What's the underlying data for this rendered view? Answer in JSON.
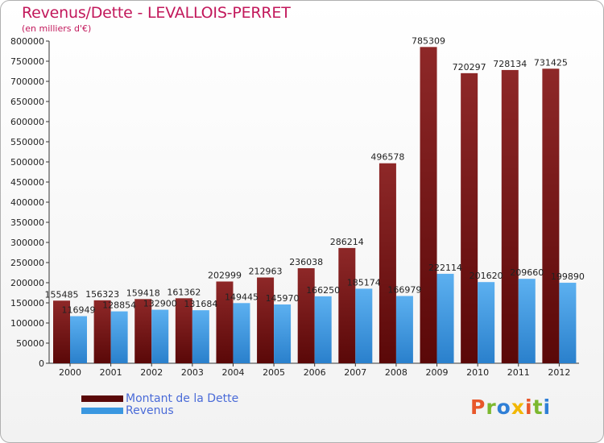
{
  "title": "Revenus/Dette - LEVALLOIS-PERRET",
  "subtitle": "(en milliers d'€)",
  "colors": {
    "dette": "#7a1414",
    "revenus": "#3a97e0",
    "title": "#c2185b",
    "legend_text": "#4a6bd8"
  },
  "legend": {
    "dette": "Montant de la Dette",
    "revenus": "Revenus"
  },
  "logo": "Proxiti",
  "chart_data": {
    "type": "bar",
    "title": "Revenus/Dette - LEVALLOIS-PERRET",
    "subtitle": "(en milliers d'€)",
    "xlabel": "",
    "ylabel": "",
    "ylim": [
      0,
      800000
    ],
    "yticks": [
      0,
      50000,
      100000,
      150000,
      200000,
      250000,
      300000,
      350000,
      400000,
      450000,
      500000,
      550000,
      600000,
      650000,
      700000,
      750000,
      800000
    ],
    "grid": false,
    "legend_position": "bottom-left",
    "categories": [
      "2000",
      "2001",
      "2002",
      "2003",
      "2004",
      "2005",
      "2006",
      "2007",
      "2008",
      "2009",
      "2010",
      "2011",
      "2012"
    ],
    "series": [
      {
        "name": "Montant de la Dette",
        "values": [
          155485,
          156323,
          159418,
          161362,
          202999,
          212963,
          236038,
          286214,
          496578,
          785309,
          720297,
          728134,
          731425
        ]
      },
      {
        "name": "Revenus",
        "values": [
          116949,
          128854,
          132900,
          131684,
          149445,
          145970,
          166250,
          185174,
          166979,
          222114,
          201620,
          209660,
          199890
        ]
      }
    ]
  }
}
